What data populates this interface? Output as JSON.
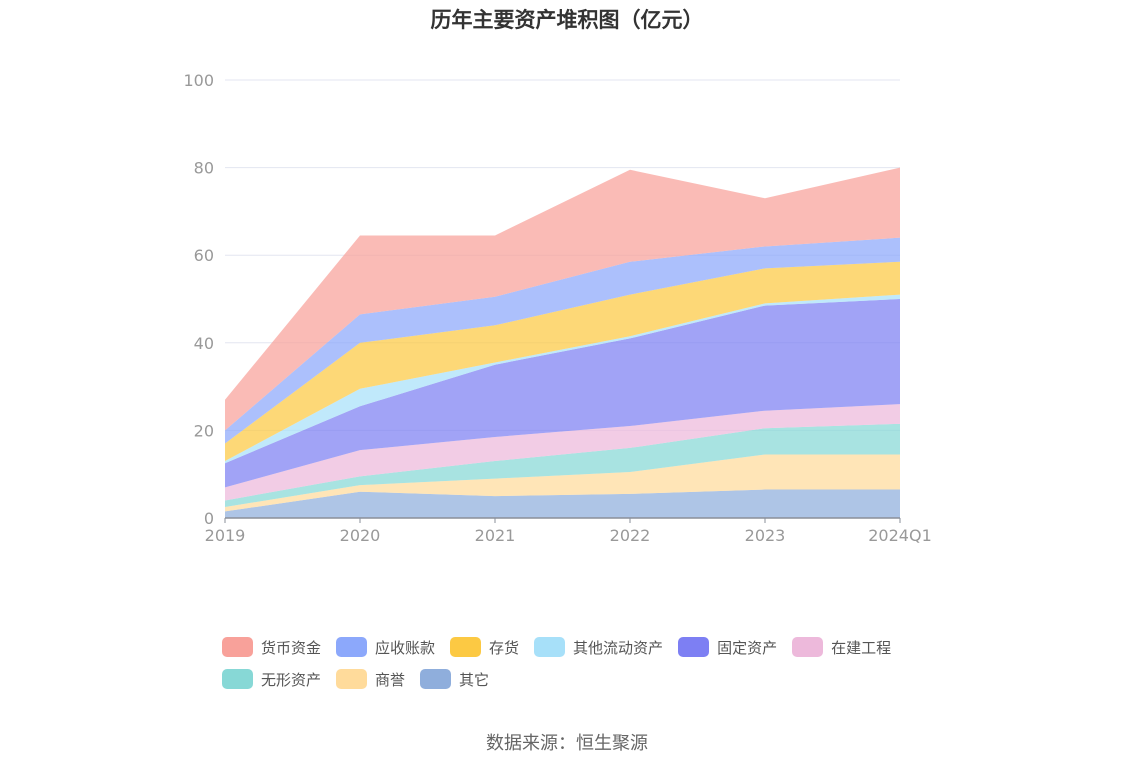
{
  "title": "历年主要资产堆积图（亿元）",
  "source": "数据来源：恒生聚源",
  "colors": [
    "#F8A19A",
    "#8CA8FB",
    "#FCC943",
    "#A7E0F9",
    "#7D7FF3",
    "#EDB9DB",
    "#87D8D6",
    "#FFDB9B",
    "#8FAEDC"
  ],
  "chart_data": {
    "type": "area",
    "stacked": true,
    "title": "历年主要资产堆积图（亿元）",
    "x": [
      "2019",
      "2020",
      "2021",
      "2022",
      "2023",
      "2024Q1"
    ],
    "ylim": [
      0,
      100
    ],
    "yticks": [
      "0",
      "20",
      "40",
      "60",
      "80",
      "100"
    ],
    "grid": true,
    "legend_position": "bottom",
    "series": [
      {
        "name": "其它",
        "values": [
          1.5,
          6,
          5,
          5.5,
          6.5,
          6.5
        ]
      },
      {
        "name": "商誉",
        "values": [
          1,
          1.5,
          4,
          5,
          8,
          8
        ]
      },
      {
        "name": "无形资产",
        "values": [
          1.5,
          2,
          4,
          5.5,
          6,
          7
        ]
      },
      {
        "name": "在建工程",
        "values": [
          3,
          6,
          5.5,
          5,
          4,
          4.5
        ]
      },
      {
        "name": "固定资产",
        "values": [
          5.5,
          10,
          16.5,
          20,
          24,
          24
        ]
      },
      {
        "name": "其他流动资产",
        "values": [
          0.5,
          4,
          0.5,
          0.5,
          0.5,
          1
        ]
      },
      {
        "name": "存货",
        "values": [
          4,
          10.5,
          8.5,
          9.5,
          8,
          7.5
        ]
      },
      {
        "name": "应收账款",
        "values": [
          3,
          6.5,
          6.5,
          7.5,
          5,
          5.5
        ]
      },
      {
        "name": "货币资金",
        "values": [
          7,
          18,
          14,
          21,
          11,
          16
        ]
      }
    ]
  },
  "legend": [
    {
      "label": "货币资金",
      "color": "#F8A19A"
    },
    {
      "label": "应收账款",
      "color": "#8CA8FB"
    },
    {
      "label": "存货",
      "color": "#FCC943"
    },
    {
      "label": "其他流动资产",
      "color": "#A7E0F9"
    },
    {
      "label": "固定资产",
      "color": "#7D7FF3"
    },
    {
      "label": "在建工程",
      "color": "#EDB9DB"
    },
    {
      "label": "无形资产",
      "color": "#87D8D6"
    },
    {
      "label": "商誉",
      "color": "#FFDB9B"
    },
    {
      "label": "其它",
      "color": "#8FAEDC"
    }
  ]
}
